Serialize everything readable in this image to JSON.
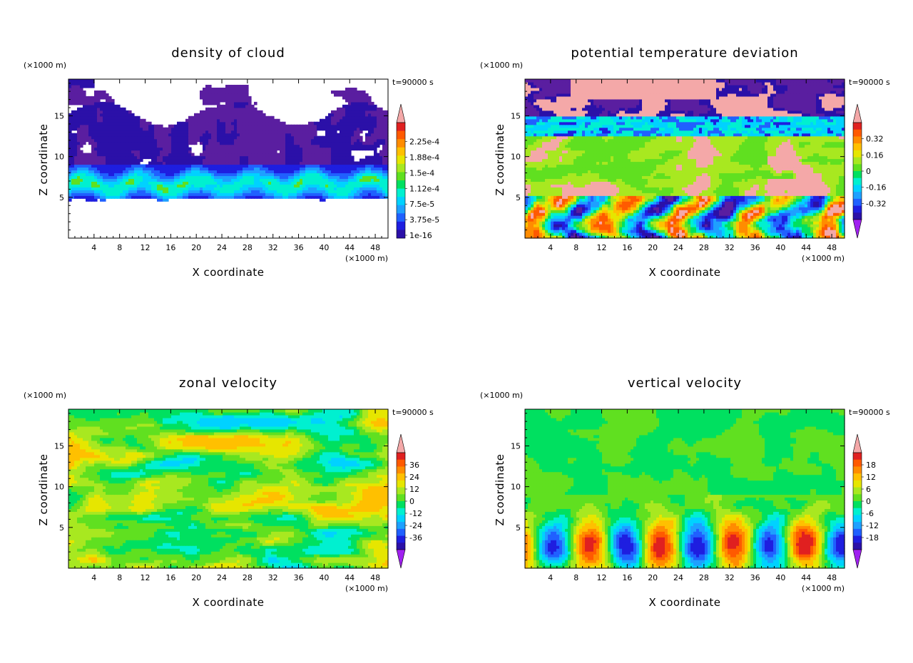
{
  "colors": {
    "scale": [
      "#A020F0",
      "#5A1EA0",
      "#2B10A8",
      "#1E1EE0",
      "#2060FF",
      "#1EA0FF",
      "#00D2FF",
      "#00F0D0",
      "#00E060",
      "#60E020",
      "#A8E820",
      "#E6E600",
      "#FFC000",
      "#FF8C00",
      "#FF5A00",
      "#E02020",
      "#F4A8A8"
    ]
  },
  "chart_data": [
    {
      "type": "heatmap",
      "field": "cloud",
      "title": "density of cloud",
      "xlabel": "X coordinate",
      "ylabel": "Z coordinate",
      "x_unit": "(×1000 m)",
      "y_unit": "(×1000 m)",
      "time_label": "t=90000 s",
      "xlim": [
        0,
        50
      ],
      "ylim": [
        0,
        19.5
      ],
      "x_ticks": [
        "4",
        "8",
        "12",
        "16",
        "20",
        "24",
        "28",
        "32",
        "36",
        "40",
        "44",
        "48"
      ],
      "y_ticks": [
        "5",
        "10",
        "15"
      ],
      "colorbar_labels": [
        "2.25e-4",
        "1.88e-4",
        "1.5e-4",
        "1.12e-4",
        "7.5e-5",
        "3.75e-5",
        "1e-16"
      ],
      "colorbar_min_arrow": false
    },
    {
      "type": "heatmap",
      "field": "theta",
      "title": "potential temperature deviation",
      "xlabel": "X coordinate",
      "ylabel": "Z coordinate",
      "x_unit": "(×1000 m)",
      "y_unit": "(×1000 m)",
      "time_label": "t=90000 s",
      "xlim": [
        0,
        50
      ],
      "ylim": [
        0,
        19.5
      ],
      "x_ticks": [
        "4",
        "8",
        "12",
        "16",
        "20",
        "24",
        "28",
        "32",
        "36",
        "40",
        "44",
        "48"
      ],
      "y_ticks": [
        "5",
        "10",
        "15"
      ],
      "colorbar_labels": [
        "0.32",
        "0.16",
        "0",
        "-0.16",
        "-0.32"
      ],
      "colorbar_min_arrow": true
    },
    {
      "type": "heatmap",
      "field": "zonal",
      "title": "zonal velocity",
      "xlabel": "X coordinate",
      "ylabel": "Z coordinate",
      "x_unit": "(×1000 m)",
      "y_unit": "(×1000 m)",
      "time_label": "t=90000 s",
      "xlim": [
        0,
        50
      ],
      "ylim": [
        0,
        19.5
      ],
      "x_ticks": [
        "4",
        "8",
        "12",
        "16",
        "20",
        "24",
        "28",
        "32",
        "36",
        "40",
        "44",
        "48"
      ],
      "y_ticks": [
        "5",
        "10",
        "15"
      ],
      "colorbar_labels": [
        "36",
        "24",
        "12",
        "0",
        "-12",
        "-24",
        "-36"
      ],
      "colorbar_min_arrow": true
    },
    {
      "type": "heatmap",
      "field": "vertical",
      "title": "vertical velocity",
      "xlabel": "X coordinate",
      "ylabel": "Z coordinate",
      "x_unit": "(×1000 m)",
      "y_unit": "(×1000 m)",
      "time_label": "t=90000 s",
      "xlim": [
        0,
        50
      ],
      "ylim": [
        0,
        19.5
      ],
      "x_ticks": [
        "4",
        "8",
        "12",
        "16",
        "20",
        "24",
        "28",
        "32",
        "36",
        "40",
        "44",
        "48"
      ],
      "y_ticks": [
        "5",
        "10",
        "15"
      ],
      "colorbar_labels": [
        "18",
        "12",
        "6",
        "0",
        "-6",
        "-12",
        "-18"
      ],
      "colorbar_min_arrow": true
    }
  ]
}
